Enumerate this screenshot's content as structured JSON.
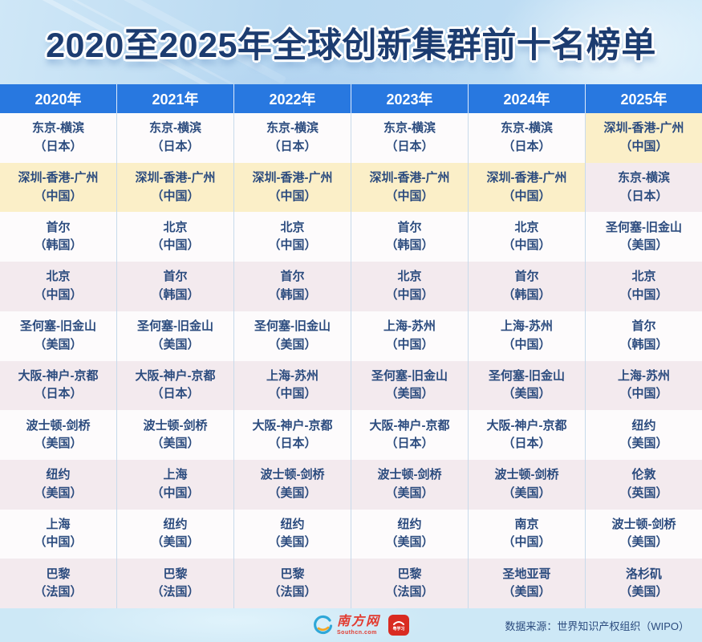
{
  "title": "2020至2025年全球创新集群前十名榜单",
  "table": {
    "columns": [
      {
        "year": "2020年",
        "cells": [
          {
            "name": "东京-横滨",
            "country": "（日本）",
            "highlight": false
          },
          {
            "name": "深圳-香港-广州",
            "country": "（中国）",
            "highlight": true
          },
          {
            "name": "首尔",
            "country": "（韩国）",
            "highlight": false
          },
          {
            "name": "北京",
            "country": "（中国）",
            "highlight": false
          },
          {
            "name": "圣何塞-旧金山",
            "country": "（美国）",
            "highlight": false
          },
          {
            "name": "大阪-神户-京都",
            "country": "（日本）",
            "highlight": false
          },
          {
            "name": "波士顿-剑桥",
            "country": "（美国）",
            "highlight": false
          },
          {
            "name": "纽约",
            "country": "（美国）",
            "highlight": false
          },
          {
            "name": "上海",
            "country": "（中国）",
            "highlight": false
          },
          {
            "name": "巴黎",
            "country": "（法国）",
            "highlight": false
          }
        ]
      },
      {
        "year": "2021年",
        "cells": [
          {
            "name": "东京-横滨",
            "country": "（日本）",
            "highlight": false
          },
          {
            "name": "深圳-香港-广州",
            "country": "（中国）",
            "highlight": true
          },
          {
            "name": "北京",
            "country": "（中国）",
            "highlight": false
          },
          {
            "name": "首尔",
            "country": "（韩国）",
            "highlight": false
          },
          {
            "name": "圣何塞-旧金山",
            "country": "（美国）",
            "highlight": false
          },
          {
            "name": "大阪-神户-京都",
            "country": "（日本）",
            "highlight": false
          },
          {
            "name": "波士顿-剑桥",
            "country": "（美国）",
            "highlight": false
          },
          {
            "name": "上海",
            "country": "（中国）",
            "highlight": false
          },
          {
            "name": "纽约",
            "country": "（美国）",
            "highlight": false
          },
          {
            "name": "巴黎",
            "country": "（法国）",
            "highlight": false
          }
        ]
      },
      {
        "year": "2022年",
        "cells": [
          {
            "name": "东京-横滨",
            "country": "（日本）",
            "highlight": false
          },
          {
            "name": "深圳-香港-广州",
            "country": "（中国）",
            "highlight": true
          },
          {
            "name": "北京",
            "country": "（中国）",
            "highlight": false
          },
          {
            "name": "首尔",
            "country": "（韩国）",
            "highlight": false
          },
          {
            "name": "圣何塞-旧金山",
            "country": "（美国）",
            "highlight": false
          },
          {
            "name": "上海-苏州",
            "country": "（中国）",
            "highlight": false
          },
          {
            "name": "大阪-神户-京都",
            "country": "（日本）",
            "highlight": false
          },
          {
            "name": "波士顿-剑桥",
            "country": "（美国）",
            "highlight": false
          },
          {
            "name": "纽约",
            "country": "（美国）",
            "highlight": false
          },
          {
            "name": "巴黎",
            "country": "（法国）",
            "highlight": false
          }
        ]
      },
      {
        "year": "2023年",
        "cells": [
          {
            "name": "东京-横滨",
            "country": "（日本）",
            "highlight": false
          },
          {
            "name": "深圳-香港-广州",
            "country": "（中国）",
            "highlight": true
          },
          {
            "name": "首尔",
            "country": "（韩国）",
            "highlight": false
          },
          {
            "name": "北京",
            "country": "（中国）",
            "highlight": false
          },
          {
            "name": "上海-苏州",
            "country": "（中国）",
            "highlight": false
          },
          {
            "name": "圣何塞-旧金山",
            "country": "（美国）",
            "highlight": false
          },
          {
            "name": "大阪-神户-京都",
            "country": "（日本）",
            "highlight": false
          },
          {
            "name": "波士顿-剑桥",
            "country": "（美国）",
            "highlight": false
          },
          {
            "name": "纽约",
            "country": "（美国）",
            "highlight": false
          },
          {
            "name": "巴黎",
            "country": "（法国）",
            "highlight": false
          }
        ]
      },
      {
        "year": "2024年",
        "cells": [
          {
            "name": "东京-横滨",
            "country": "（日本）",
            "highlight": false
          },
          {
            "name": "深圳-香港-广州",
            "country": "（中国）",
            "highlight": true
          },
          {
            "name": "北京",
            "country": "（中国）",
            "highlight": false
          },
          {
            "name": "首尔",
            "country": "（韩国）",
            "highlight": false
          },
          {
            "name": "上海-苏州",
            "country": "（中国）",
            "highlight": false
          },
          {
            "name": "圣何塞-旧金山",
            "country": "（美国）",
            "highlight": false
          },
          {
            "name": "大阪-神户-京都",
            "country": "（日本）",
            "highlight": false
          },
          {
            "name": "波士顿-剑桥",
            "country": "（美国）",
            "highlight": false
          },
          {
            "name": "南京",
            "country": "（中国）",
            "highlight": false
          },
          {
            "name": "圣地亚哥",
            "country": "（美国）",
            "highlight": false
          }
        ]
      },
      {
        "year": "2025年",
        "cells": [
          {
            "name": "深圳-香港-广州",
            "country": "（中国）",
            "highlight": true
          },
          {
            "name": "东京-横滨",
            "country": "（日本）",
            "highlight": false
          },
          {
            "name": "圣何塞-旧金山",
            "country": "（美国）",
            "highlight": false
          },
          {
            "name": "北京",
            "country": "（中国）",
            "highlight": false
          },
          {
            "name": "首尔",
            "country": "（韩国）",
            "highlight": false
          },
          {
            "name": "上海-苏州",
            "country": "（中国）",
            "highlight": false
          },
          {
            "name": "纽约",
            "country": "（美国）",
            "highlight": false
          },
          {
            "name": "伦敦",
            "country": "（英国）",
            "highlight": false
          },
          {
            "name": "波士顿-剑桥",
            "country": "（美国）",
            "highlight": false
          },
          {
            "name": "洛杉矶",
            "country": "（美国）",
            "highlight": false
          }
        ]
      }
    ]
  },
  "footer": {
    "source": "数据来源：世界知识产权组织（WIPO）",
    "logo_southcn": "南方网",
    "logo_southcn_sub": "Southcn.com",
    "logo_yuexuexi": "粤学习"
  },
  "colors": {
    "header_blue": "#2878e0",
    "row_white": "#fdfbfc",
    "row_pink": "#f3eaee",
    "highlight_yellow": "#fbefc8",
    "cell_text_navy": "#2b4b7e",
    "title_navy": "#1c3c70",
    "banner_blue": "#bedcf2",
    "footer_blue": "#cde8f6",
    "logo_red": "#e23b30"
  },
  "chart_data": {
    "type": "table",
    "title": "2020至2025年全球创新集群前十名榜单",
    "columns": [
      "2020年",
      "2021年",
      "2022年",
      "2023年",
      "2024年",
      "2025年"
    ],
    "rows": [
      [
        "东京-横滨（日本）",
        "东京-横滨（日本）",
        "东京-横滨（日本）",
        "东京-横滨（日本）",
        "东京-横滨（日本）",
        "深圳-香港-广州（中国）"
      ],
      [
        "深圳-香港-广州（中国）",
        "深圳-香港-广州（中国）",
        "深圳-香港-广州（中国）",
        "深圳-香港-广州（中国）",
        "深圳-香港-广州（中国）",
        "东京-横滨（日本）"
      ],
      [
        "首尔（韩国）",
        "北京（中国）",
        "北京（中国）",
        "首尔（韩国）",
        "北京（中国）",
        "圣何塞-旧金山（美国）"
      ],
      [
        "北京（中国）",
        "首尔（韩国）",
        "首尔（韩国）",
        "北京（中国）",
        "首尔（韩国）",
        "北京（中国）"
      ],
      [
        "圣何塞-旧金山（美国）",
        "圣何塞-旧金山（美国）",
        "圣何塞-旧金山（美国）",
        "上海-苏州（中国）",
        "上海-苏州（中国）",
        "首尔（韩国）"
      ],
      [
        "大阪-神户-京都（日本）",
        "大阪-神户-京都（日本）",
        "上海-苏州（中国）",
        "圣何塞-旧金山（美国）",
        "圣何塞-旧金山（美国）",
        "上海-苏州（中国）"
      ],
      [
        "波士顿-剑桥（美国）",
        "波士顿-剑桥（美国）",
        "大阪-神户-京都（日本）",
        "大阪-神户-京都（日本）",
        "大阪-神户-京都（日本）",
        "纽约（美国）"
      ],
      [
        "纽约（美国）",
        "上海（中国）",
        "波士顿-剑桥（美国）",
        "波士顿-剑桥（美国）",
        "波士顿-剑桥（美国）",
        "伦敦（英国）"
      ],
      [
        "上海（中国）",
        "纽约（美国）",
        "纽约（美国）",
        "纽约（美国）",
        "南京（中国）",
        "波士顿-剑桥（美国）"
      ],
      [
        "巴黎（法国）",
        "巴黎（法国）",
        "巴黎（法国）",
        "巴黎（法国）",
        "圣地亚哥（美国）",
        "洛杉矶（美国）"
      ]
    ],
    "highlighted_cluster": "深圳-香港-广州（中国）",
    "source": "数据来源：世界知识产权组织（WIPO）",
    "legend_position": "none",
    "grid": false
  }
}
